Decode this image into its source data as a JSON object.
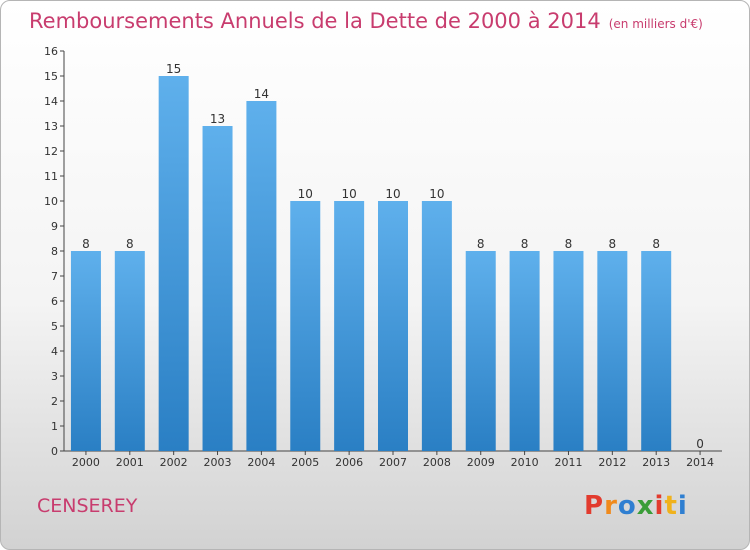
{
  "header": {
    "title": "Remboursements Annuels de la Dette de 2000 à 2014",
    "unit": "(en milliers d'€)"
  },
  "footer": {
    "commune": "CENSEREY",
    "logo_text": "Proxiti"
  },
  "colors": {
    "title": "#c83c6e",
    "bar_top": "#5fb0ec",
    "bar_bottom": "#2a7fc4"
  },
  "chart_data": {
    "type": "bar",
    "title": "Remboursements Annuels de la Dette de 2000 à 2014",
    "xlabel": "",
    "ylabel": "",
    "categories": [
      "2000",
      "2001",
      "2002",
      "2003",
      "2004",
      "2005",
      "2006",
      "2007",
      "2008",
      "2009",
      "2010",
      "2011",
      "2012",
      "2013",
      "2014"
    ],
    "values": [
      8,
      8,
      15,
      13,
      14,
      10,
      10,
      10,
      10,
      8,
      8,
      8,
      8,
      8,
      0
    ],
    "ylim": [
      0,
      16
    ],
    "yticks": [
      0,
      1,
      2,
      3,
      4,
      5,
      6,
      7,
      8,
      9,
      10,
      11,
      12,
      13,
      14,
      15,
      16
    ],
    "grid": false,
    "data_labels": true
  }
}
